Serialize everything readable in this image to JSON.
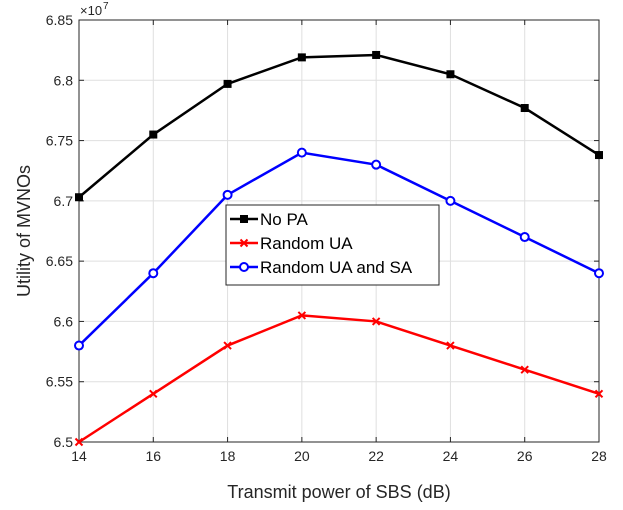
{
  "chart_data": {
    "type": "line",
    "xlabel": "Transmit power of SBS (dB)",
    "ylabel": "Utility of MVNOs",
    "y_exponent_base": "×10",
    "y_exponent_power": "7",
    "x": [
      14,
      16,
      18,
      20,
      22,
      24,
      26,
      28
    ],
    "xlim": [
      14,
      28
    ],
    "ylim": [
      6.5,
      6.85
    ],
    "xticks": [
      "14",
      "16",
      "18",
      "20",
      "22",
      "24",
      "26",
      "28"
    ],
    "yticks": [
      "6.5",
      "6.55",
      "6.6",
      "6.65",
      "6.7",
      "6.75",
      "6.8",
      "6.85"
    ],
    "grid": true,
    "legend_position": "center",
    "series": [
      {
        "name": "No PA",
        "color": "#000000",
        "marker": "square",
        "values": [
          6.703,
          6.755,
          6.797,
          6.819,
          6.821,
          6.805,
          6.777,
          6.738
        ]
      },
      {
        "name": "Random UA",
        "color": "#ff0000",
        "marker": "x",
        "values": [
          6.5,
          6.54,
          6.58,
          6.605,
          6.6,
          6.58,
          6.56,
          6.54
        ]
      },
      {
        "name": "Random UA and SA",
        "color": "#0000ff",
        "marker": "circle",
        "values": [
          6.58,
          6.64,
          6.705,
          6.74,
          6.73,
          6.7,
          6.67,
          6.64
        ]
      }
    ]
  }
}
